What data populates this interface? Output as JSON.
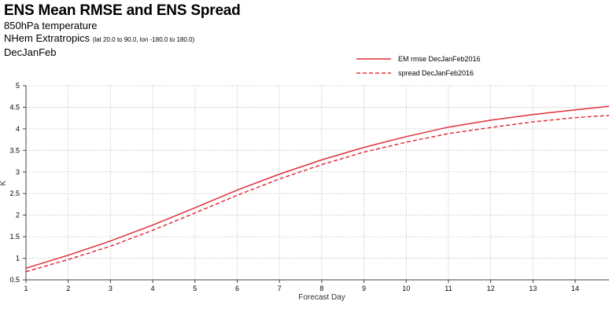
{
  "title": "ENS Mean RMSE and ENS Spread",
  "subtitle_param": "850hPa temperature",
  "subtitle_region": "NHem Extratropics",
  "subtitle_region_detail": "(lat  20.0 to 90.0, lon  -180.0 to  180.0)",
  "subtitle_season": "DecJanFeb",
  "colors": {
    "series": "#e0303a",
    "grid": "#bbbbbb",
    "axis": "#444444"
  },
  "chart_data": {
    "type": "line",
    "xlabel": "Forecast Day",
    "ylabel": "K",
    "xlim": [
      1,
      14.8
    ],
    "ylim": [
      0.5,
      5
    ],
    "x_ticks": [
      1,
      2,
      3,
      4,
      5,
      6,
      7,
      8,
      9,
      10,
      11,
      12,
      13,
      14
    ],
    "y_ticks": [
      0.5,
      1,
      1.5,
      2,
      2.5,
      3,
      3.5,
      4,
      4.5,
      5
    ],
    "grid": true,
    "legend_position": "top-right",
    "series": [
      {
        "name": "EM rmse DecJanFeb2016",
        "style": "solid",
        "x": [
          1,
          2,
          3,
          4,
          5,
          6,
          7,
          8,
          9,
          10,
          11,
          12,
          13,
          14,
          14.8
        ],
        "y": [
          0.77,
          1.07,
          1.4,
          1.77,
          2.17,
          2.58,
          2.95,
          3.28,
          3.57,
          3.82,
          4.04,
          4.2,
          4.33,
          4.44,
          4.52
        ]
      },
      {
        "name": "spread DecJanFeb2016",
        "style": "dashed",
        "x": [
          1,
          2,
          3,
          4,
          5,
          6,
          7,
          8,
          9,
          10,
          11,
          12,
          13,
          14,
          14.8
        ],
        "y": [
          0.69,
          0.97,
          1.28,
          1.65,
          2.05,
          2.46,
          2.84,
          3.17,
          3.46,
          3.69,
          3.89,
          4.03,
          4.16,
          4.26,
          4.31
        ]
      }
    ]
  }
}
